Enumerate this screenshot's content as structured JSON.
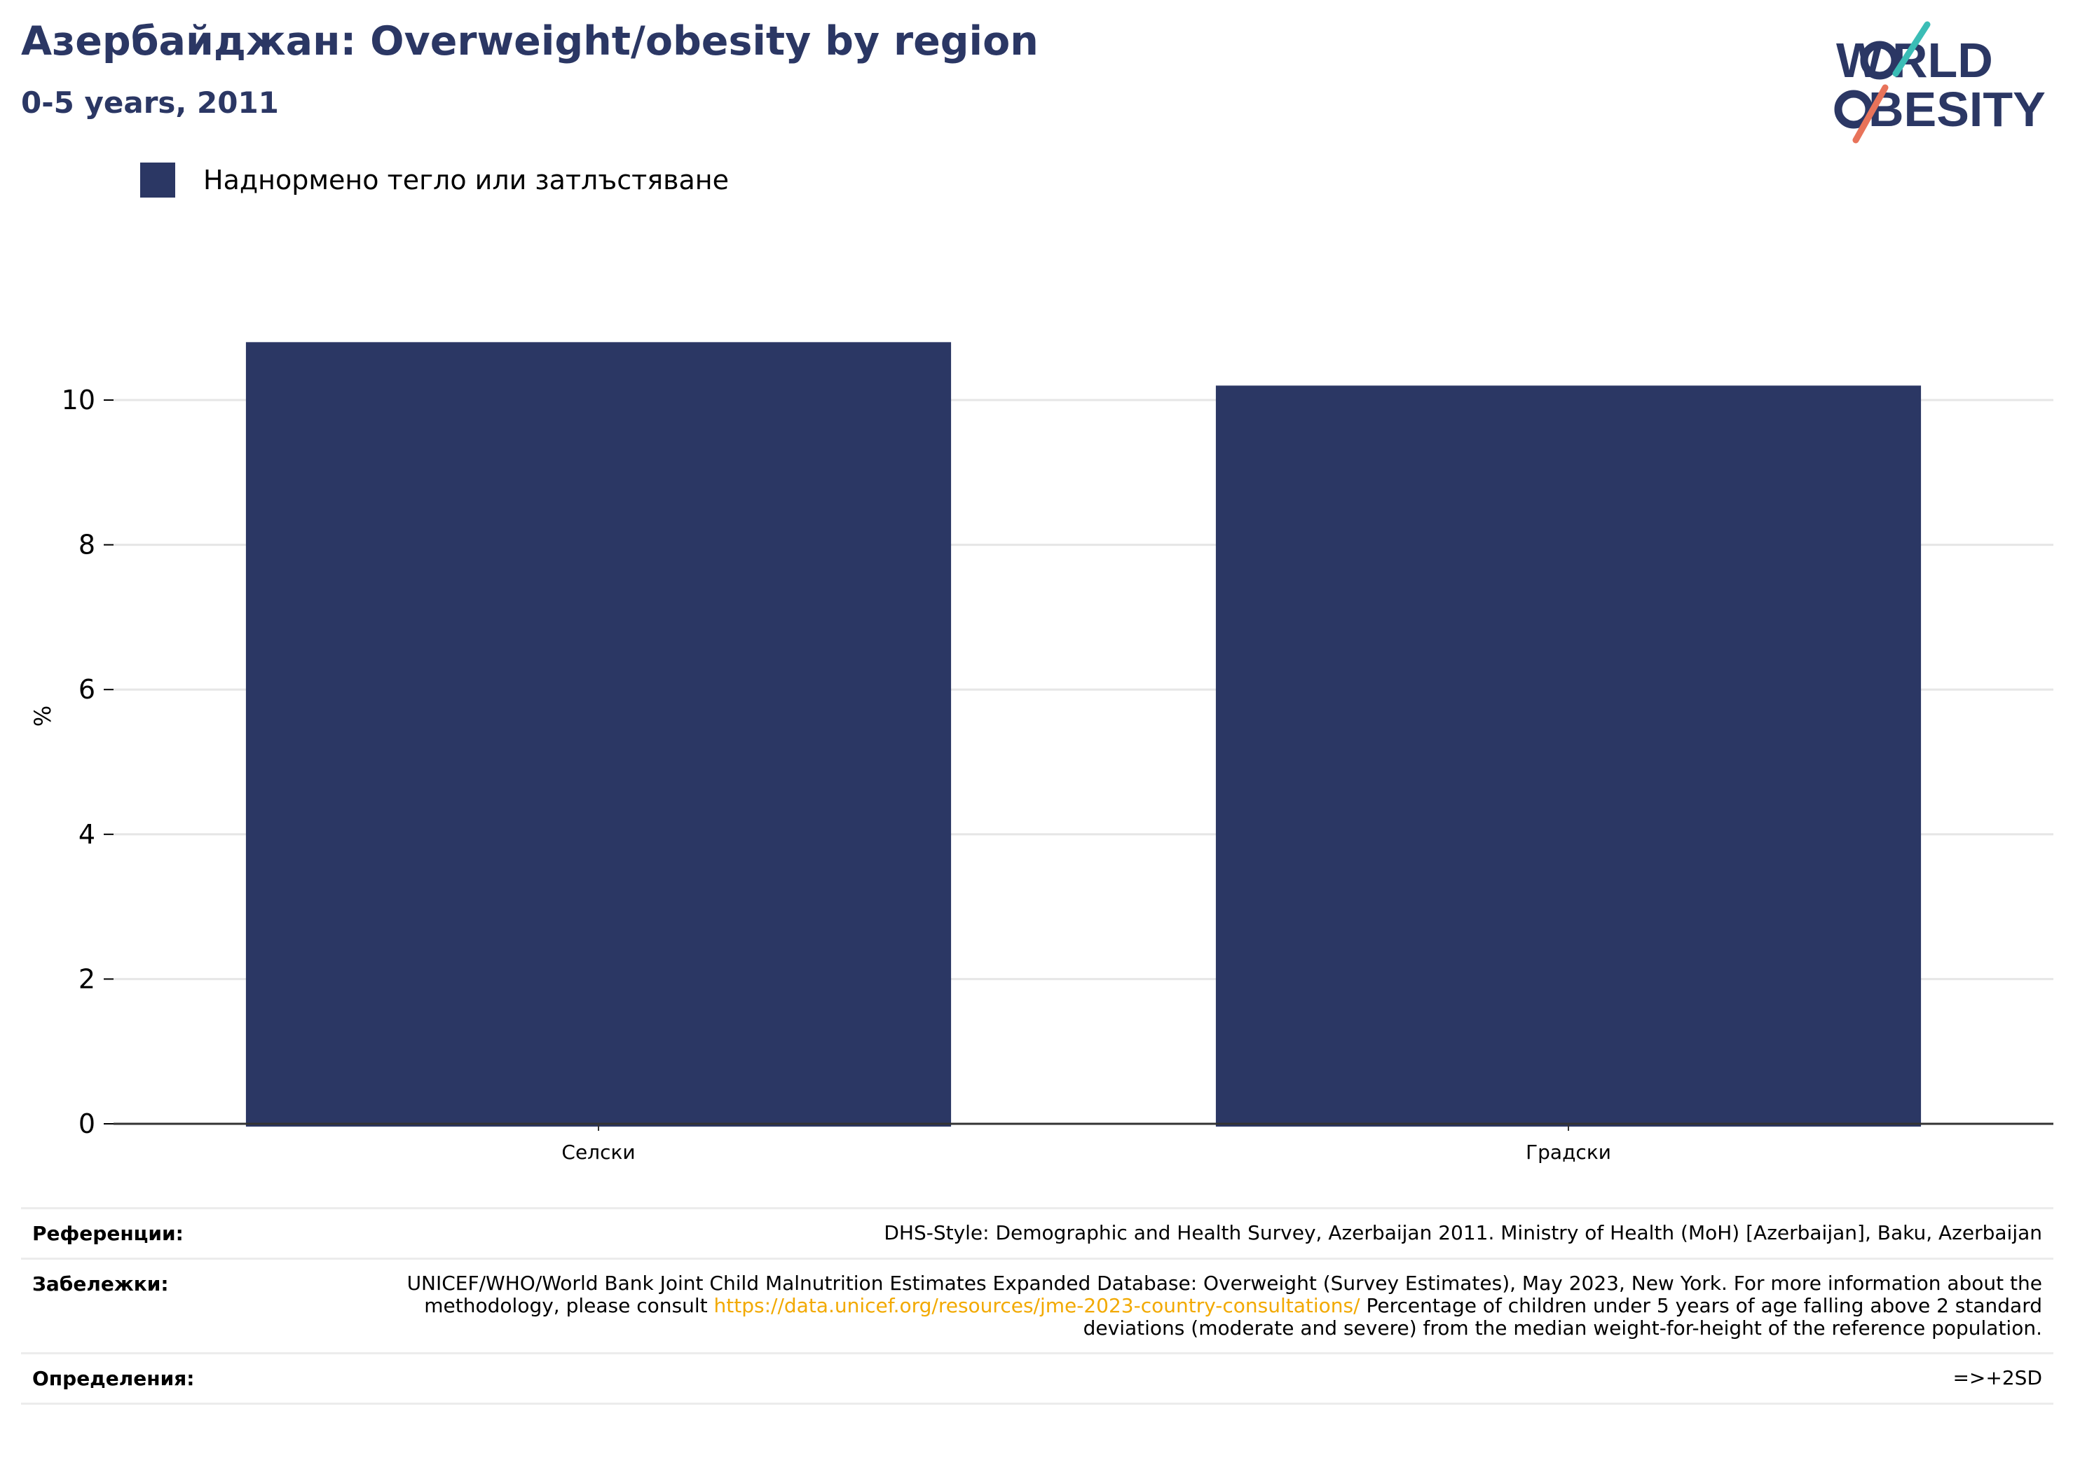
{
  "header": {
    "title": "Азербайджан: Overweight/obesity by region",
    "subtitle": "0-5 years, 2011"
  },
  "logo": {
    "line1": "WORLD",
    "line2": "OBESITY"
  },
  "colors": {
    "bar": "#2b3764",
    "title": "#2b3764",
    "link": "#f2a900",
    "grid": "#e6e6e6"
  },
  "chart_data": {
    "type": "bar",
    "categories": [
      "Селски",
      "Градски"
    ],
    "series": [
      {
        "name": "Наднормено тегло или затлъстяване",
        "values": [
          10.8,
          10.2
        ]
      }
    ],
    "xlabel": "",
    "ylabel": "%",
    "ylim": [
      0,
      12
    ],
    "yticks": [
      0,
      2,
      4,
      6,
      8,
      10
    ],
    "grid": true,
    "legend": "top-left"
  },
  "footer": {
    "references_label": "Референции:",
    "references_text": "DHS-Style: Demographic and Health Survey, Azerbaijan 2011. Ministry of Health (MoH) [Azerbaijan], Baku, Azerbaijan",
    "notes_label": "Забележки:",
    "notes_text_before": "UNICEF/WHO/World Bank Joint Child Malnutrition Estimates Expanded Database: Overweight (Survey Estimates), May 2023, New York. For more information about the methodology, please consult",
    "notes_link": "https://data.unicef.org/resources/jme-2023-country-consultations/",
    "notes_text_after": "Percentage of children under 5 years of age falling above 2 standard deviations (moderate and severe) from the median weight-for-height of the reference population.",
    "definitions_label": "Определения:",
    "definitions_text": "=>+2SD"
  }
}
